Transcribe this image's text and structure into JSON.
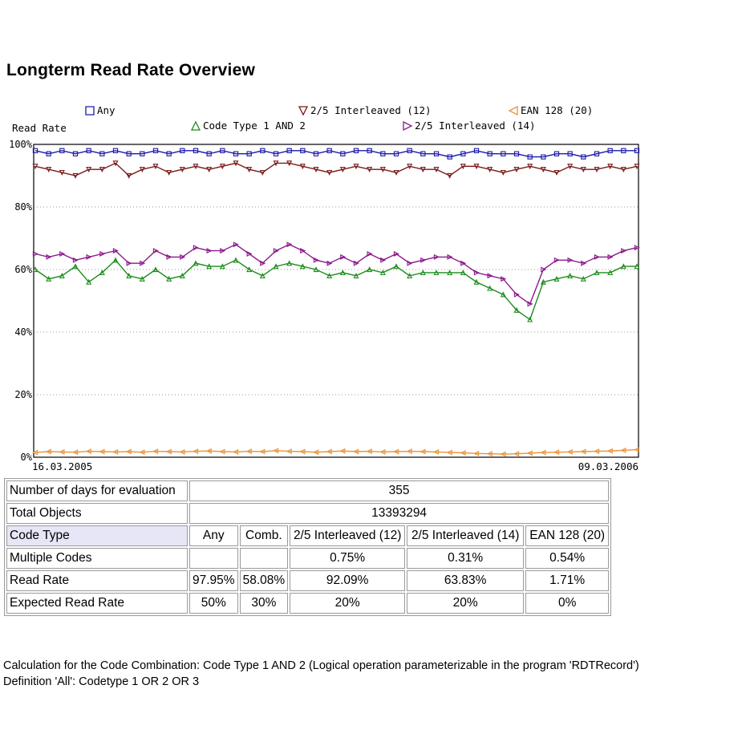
{
  "title": "Longterm Read Rate Overview",
  "chart_data": {
    "type": "line",
    "ylabel": "Read Rate",
    "ylim": [
      0,
      100
    ],
    "yticks": [
      "0%",
      "20%",
      "40%",
      "60%",
      "80%",
      "100%"
    ],
    "x_start_label": "16.03.2005",
    "x_end_label": "09.03.2006",
    "grid": true,
    "legend_position": "top",
    "series": [
      {
        "name": "Any",
        "marker": "square",
        "color": "#1a1aa8",
        "values": [
          98,
          97,
          98,
          97,
          98,
          97,
          98,
          97,
          97,
          98,
          97,
          98,
          98,
          97,
          98,
          97,
          97,
          98,
          97,
          98,
          98,
          97,
          98,
          97,
          98,
          98,
          97,
          97,
          98,
          97,
          97,
          96,
          97,
          98,
          97,
          97,
          97,
          96,
          96,
          97,
          97,
          96,
          97,
          98,
          98,
          98
        ]
      },
      {
        "name": "2/5 Interleaved (12)",
        "marker": "triangle-down",
        "color": "#7a1a1a",
        "values": [
          93,
          92,
          91,
          90,
          92,
          92,
          94,
          90,
          92,
          93,
          91,
          92,
          93,
          92,
          93,
          94,
          92,
          91,
          94,
          94,
          93,
          92,
          91,
          92,
          93,
          92,
          92,
          91,
          93,
          92,
          92,
          90,
          93,
          93,
          92,
          91,
          92,
          93,
          92,
          91,
          93,
          92,
          92,
          93,
          92,
          93
        ]
      },
      {
        "name": "Code Type 1 AND 2",
        "marker": "triangle-up",
        "color": "#1c8c1c",
        "values": [
          60,
          57,
          58,
          61,
          56,
          59,
          63,
          58,
          57,
          60,
          57,
          58,
          62,
          61,
          61,
          63,
          60,
          58,
          61,
          62,
          61,
          60,
          58,
          59,
          58,
          60,
          59,
          61,
          58,
          59,
          59,
          59,
          59,
          56,
          54,
          52,
          47,
          44,
          56,
          57,
          58,
          57,
          59,
          59,
          61,
          61
        ]
      },
      {
        "name": "2/5 Interleaved (14)",
        "marker": "triangle-right",
        "color": "#8c1a8c",
        "values": [
          65,
          64,
          65,
          63,
          64,
          65,
          66,
          62,
          62,
          66,
          64,
          64,
          67,
          66,
          66,
          68,
          65,
          62,
          66,
          68,
          66,
          63,
          62,
          64,
          62,
          65,
          63,
          65,
          62,
          63,
          64,
          64,
          62,
          59,
          58,
          57,
          52,
          49,
          60,
          63,
          63,
          62,
          64,
          64,
          66,
          67
        ]
      },
      {
        "name": "EAN 128 (20)",
        "marker": "triangle-left",
        "color": "#e8943a",
        "values": [
          1.5,
          1.8,
          1.7,
          1.6,
          1.9,
          1.8,
          1.7,
          1.8,
          1.6,
          1.9,
          1.8,
          1.7,
          1.9,
          2.0,
          1.8,
          1.7,
          1.9,
          1.8,
          2.1,
          1.9,
          1.8,
          1.6,
          1.8,
          2.0,
          1.8,
          1.9,
          1.7,
          1.8,
          1.9,
          1.8,
          1.7,
          1.5,
          1.4,
          1.2,
          1.1,
          1.0,
          1.1,
          1.3,
          1.5,
          1.6,
          1.7,
          1.8,
          1.9,
          2.0,
          2.2,
          2.4
        ]
      }
    ]
  },
  "table": {
    "rows": [
      {
        "label": "Number of days for evaluation",
        "span_value": "355"
      },
      {
        "label": "Total Objects",
        "span_value": "13393294"
      },
      {
        "label": "Code Type",
        "cells": [
          "Any",
          "Comb.",
          "2/5 Interleaved (12)",
          "2/5 Interleaved (14)",
          "EAN 128 (20)"
        ]
      },
      {
        "label": "Multiple Codes",
        "cells": [
          "",
          "",
          "0.75%",
          "0.31%",
          "0.54%"
        ]
      },
      {
        "label": "Read Rate",
        "cells": [
          "97.95%",
          "58.08%",
          "92.09%",
          "63.83%",
          "1.71%"
        ]
      },
      {
        "label": "Expected Read Rate",
        "cells": [
          "50%",
          "30%",
          "20%",
          "20%",
          "0%"
        ]
      }
    ]
  },
  "footnotes": [
    "Calculation for the Code Combination: Code Type 1 AND 2 (Logical operation parameterizable in the program 'RDTRecord')",
    "Definition 'All': Codetype 1 OR 2 OR 3"
  ]
}
